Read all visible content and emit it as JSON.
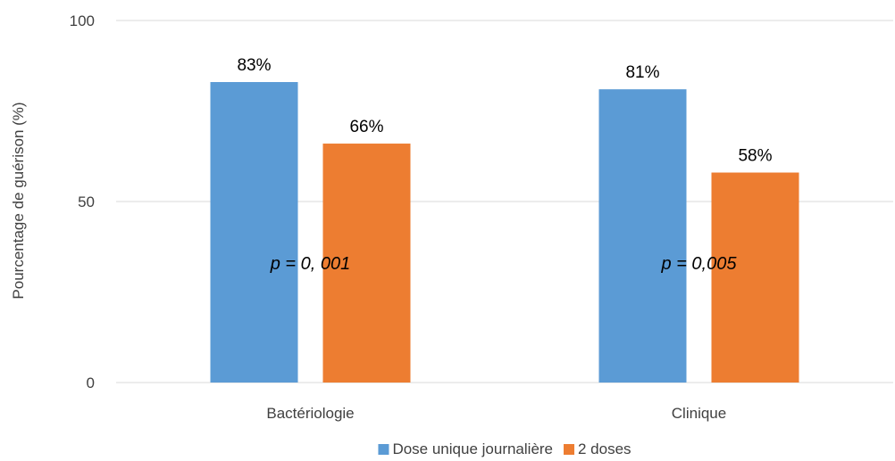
{
  "chart_data": {
    "type": "bar",
    "title": "",
    "xlabel": "",
    "ylabel": "Pourcentage de guérison (%)",
    "categories": [
      "Bactériologie",
      "Clinique"
    ],
    "series": [
      {
        "name": "Dose unique journalière",
        "values": [
          83,
          81
        ],
        "labels": [
          "83%",
          "81%"
        ],
        "color": "#5B9BD5"
      },
      {
        "name": "2 doses",
        "values": [
          66,
          58
        ],
        "labels": [
          "66%",
          "58%"
        ],
        "color": "#ED7D31"
      }
    ],
    "ylim": [
      0,
      100
    ],
    "yticks": [
      0,
      50,
      100
    ],
    "yticklabels": [
      "0",
      "50",
      "100"
    ],
    "grid": true,
    "legend": "bottom",
    "annotations": [
      "p = 0, 001",
      "p = 0,005"
    ]
  }
}
